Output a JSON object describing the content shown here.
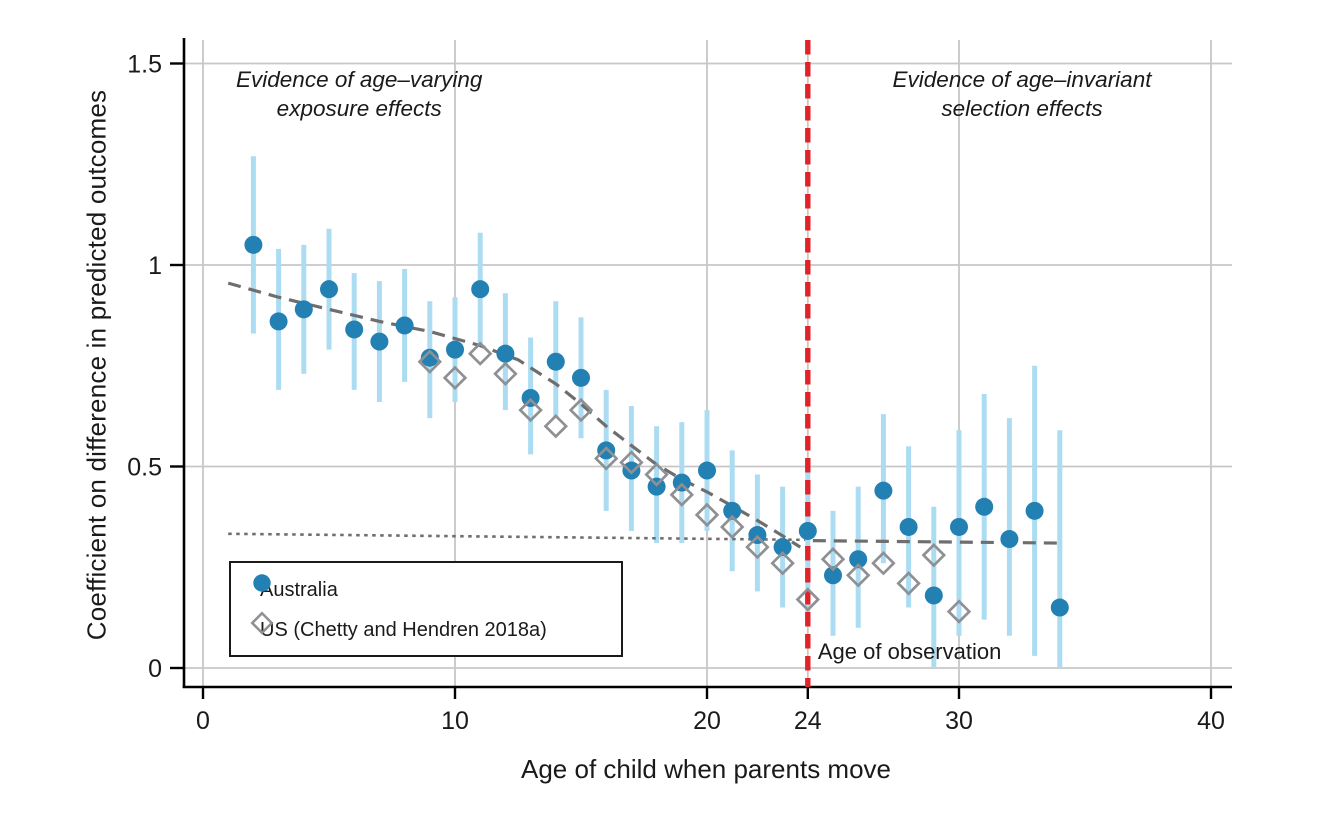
{
  "chart_data": {
    "type": "scatter",
    "title": "",
    "xlabel": "Age of child when parents move",
    "ylabel": "Coefficient on difference in predicted outcomes",
    "xlim": [
      -0.7,
      40.8
    ],
    "ylim": [
      -0.05,
      1.56
    ],
    "x_ticks": [
      0,
      10,
      20,
      24,
      30,
      40
    ],
    "y_ticks": [
      0,
      0.5,
      1,
      1.5
    ],
    "y_tick_labels": [
      "0",
      "0.5",
      "1",
      "1.5"
    ],
    "grid": true,
    "grid_color": "#c7c7c7",
    "axis_color": "#000000",
    "text_color": "#1a1a1a",
    "legend_position": "lower-left",
    "series": [
      {
        "name": "Australia",
        "marker": "circle",
        "color": "#2280b2",
        "ci_color": "#abdcf2",
        "points": [
          {
            "age": 2,
            "v": 1.05,
            "lo": 0.83,
            "hi": 1.27
          },
          {
            "age": 3,
            "v": 0.86,
            "lo": 0.69,
            "hi": 1.04
          },
          {
            "age": 4,
            "v": 0.89,
            "lo": 0.73,
            "hi": 1.05
          },
          {
            "age": 5,
            "v": 0.94,
            "lo": 0.79,
            "hi": 1.09
          },
          {
            "age": 6,
            "v": 0.84,
            "lo": 0.69,
            "hi": 0.98
          },
          {
            "age": 7,
            "v": 0.81,
            "lo": 0.66,
            "hi": 0.96
          },
          {
            "age": 8,
            "v": 0.85,
            "lo": 0.71,
            "hi": 0.99
          },
          {
            "age": 9,
            "v": 0.77,
            "lo": 0.62,
            "hi": 0.91
          },
          {
            "age": 10,
            "v": 0.79,
            "lo": 0.66,
            "hi": 0.92
          },
          {
            "age": 11,
            "v": 0.94,
            "lo": 0.8,
            "hi": 1.08
          },
          {
            "age": 12,
            "v": 0.78,
            "lo": 0.64,
            "hi": 0.93
          },
          {
            "age": 13,
            "v": 0.67,
            "lo": 0.53,
            "hi": 0.82
          },
          {
            "age": 14,
            "v": 0.76,
            "lo": 0.62,
            "hi": 0.91
          },
          {
            "age": 15,
            "v": 0.72,
            "lo": 0.57,
            "hi": 0.87
          },
          {
            "age": 16,
            "v": 0.54,
            "lo": 0.39,
            "hi": 0.69
          },
          {
            "age": 17,
            "v": 0.49,
            "lo": 0.34,
            "hi": 0.65
          },
          {
            "age": 18,
            "v": 0.45,
            "lo": 0.31,
            "hi": 0.6
          },
          {
            "age": 19,
            "v": 0.46,
            "lo": 0.31,
            "hi": 0.61
          },
          {
            "age": 20,
            "v": 0.49,
            "lo": 0.34,
            "hi": 0.64
          },
          {
            "age": 21,
            "v": 0.39,
            "lo": 0.24,
            "hi": 0.54
          },
          {
            "age": 22,
            "v": 0.33,
            "lo": 0.19,
            "hi": 0.48
          },
          {
            "age": 23,
            "v": 0.3,
            "lo": 0.15,
            "hi": 0.45
          },
          {
            "age": 24,
            "v": 0.34,
            "lo": 0.12,
            "hi": 0.51
          },
          {
            "age": 25,
            "v": 0.23,
            "lo": 0.08,
            "hi": 0.39
          },
          {
            "age": 26,
            "v": 0.27,
            "lo": 0.1,
            "hi": 0.45
          },
          {
            "age": 27,
            "v": 0.44,
            "lo": 0.26,
            "hi": 0.63
          },
          {
            "age": 28,
            "v": 0.35,
            "lo": 0.15,
            "hi": 0.55
          },
          {
            "age": 29,
            "v": 0.18,
            "lo": 0.0,
            "hi": 0.4
          },
          {
            "age": 30,
            "v": 0.35,
            "lo": 0.08,
            "hi": 0.59
          },
          {
            "age": 31,
            "v": 0.4,
            "lo": 0.12,
            "hi": 0.68
          },
          {
            "age": 32,
            "v": 0.32,
            "lo": 0.08,
            "hi": 0.62
          },
          {
            "age": 33,
            "v": 0.39,
            "lo": 0.03,
            "hi": 0.75
          },
          {
            "age": 34,
            "v": 0.15,
            "lo": 0.0,
            "hi": 0.59
          }
        ]
      },
      {
        "name": "US (Chetty and Hendren 2018a)",
        "marker": "diamond",
        "color": "#8e9093",
        "points": [
          {
            "age": 9,
            "v": 0.76
          },
          {
            "age": 10,
            "v": 0.72
          },
          {
            "age": 11,
            "v": 0.78
          },
          {
            "age": 12,
            "v": 0.73
          },
          {
            "age": 13,
            "v": 0.64
          },
          {
            "age": 14,
            "v": 0.6
          },
          {
            "age": 15,
            "v": 0.64
          },
          {
            "age": 16,
            "v": 0.52
          },
          {
            "age": 17,
            "v": 0.51
          },
          {
            "age": 18,
            "v": 0.48
          },
          {
            "age": 19,
            "v": 0.43
          },
          {
            "age": 20,
            "v": 0.38
          },
          {
            "age": 21,
            "v": 0.35
          },
          {
            "age": 22,
            "v": 0.3
          },
          {
            "age": 23,
            "v": 0.26
          },
          {
            "age": 24,
            "v": 0.17
          },
          {
            "age": 25,
            "v": 0.27
          },
          {
            "age": 26,
            "v": 0.23
          },
          {
            "age": 27,
            "v": 0.26
          },
          {
            "age": 28,
            "v": 0.21
          },
          {
            "age": 29,
            "v": 0.28
          },
          {
            "age": 30,
            "v": 0.14
          }
        ]
      }
    ],
    "fit_lines": [
      {
        "name": "exposure-effects-fit",
        "style": "dashed",
        "color": "#6e6e6e",
        "points": [
          [
            1,
            0.955
          ],
          [
            3,
            0.92
          ],
          [
            5,
            0.89
          ],
          [
            7,
            0.86
          ],
          [
            9,
            0.835
          ],
          [
            11,
            0.8
          ],
          [
            12.5,
            0.765
          ],
          [
            14,
            0.705
          ],
          [
            15,
            0.655
          ],
          [
            16,
            0.6
          ],
          [
            17,
            0.552
          ],
          [
            18,
            0.505
          ],
          [
            19,
            0.468
          ],
          [
            20,
            0.437
          ],
          [
            21,
            0.402
          ],
          [
            22,
            0.366
          ],
          [
            23,
            0.328
          ],
          [
            23.7,
            0.3
          ]
        ]
      },
      {
        "name": "selection-fit-extrapolated",
        "style": "dotted",
        "color": "#6e6e6e",
        "points": [
          [
            1,
            0.333
          ],
          [
            23.9,
            0.318
          ]
        ]
      },
      {
        "name": "selection-fit",
        "style": "dashed",
        "color": "#6e6e6e",
        "points": [
          [
            24.2,
            0.316
          ],
          [
            34,
            0.31
          ]
        ]
      }
    ],
    "reference_line": {
      "x": 24,
      "color": "#e02229",
      "style": "dashed",
      "label": "Age of observation",
      "label_x": 24.4,
      "label_y": 0.04
    },
    "annotations": [
      {
        "lines": [
          "Evidence of age–varying",
          "exposure effects"
        ],
        "x": 6.2,
        "y": 1.425
      },
      {
        "lines": [
          "Evidence of age–invariant",
          "selection effects"
        ],
        "x": 32.5,
        "y": 1.425
      }
    ]
  },
  "colors": {
    "australia": "#2280b2",
    "australia_ci": "#abdcf2",
    "us": "#8e9093",
    "fit_line": "#6e6e6e",
    "reference": "#e02229",
    "grid": "#c7c7c7",
    "text": "#1a1a1a"
  }
}
